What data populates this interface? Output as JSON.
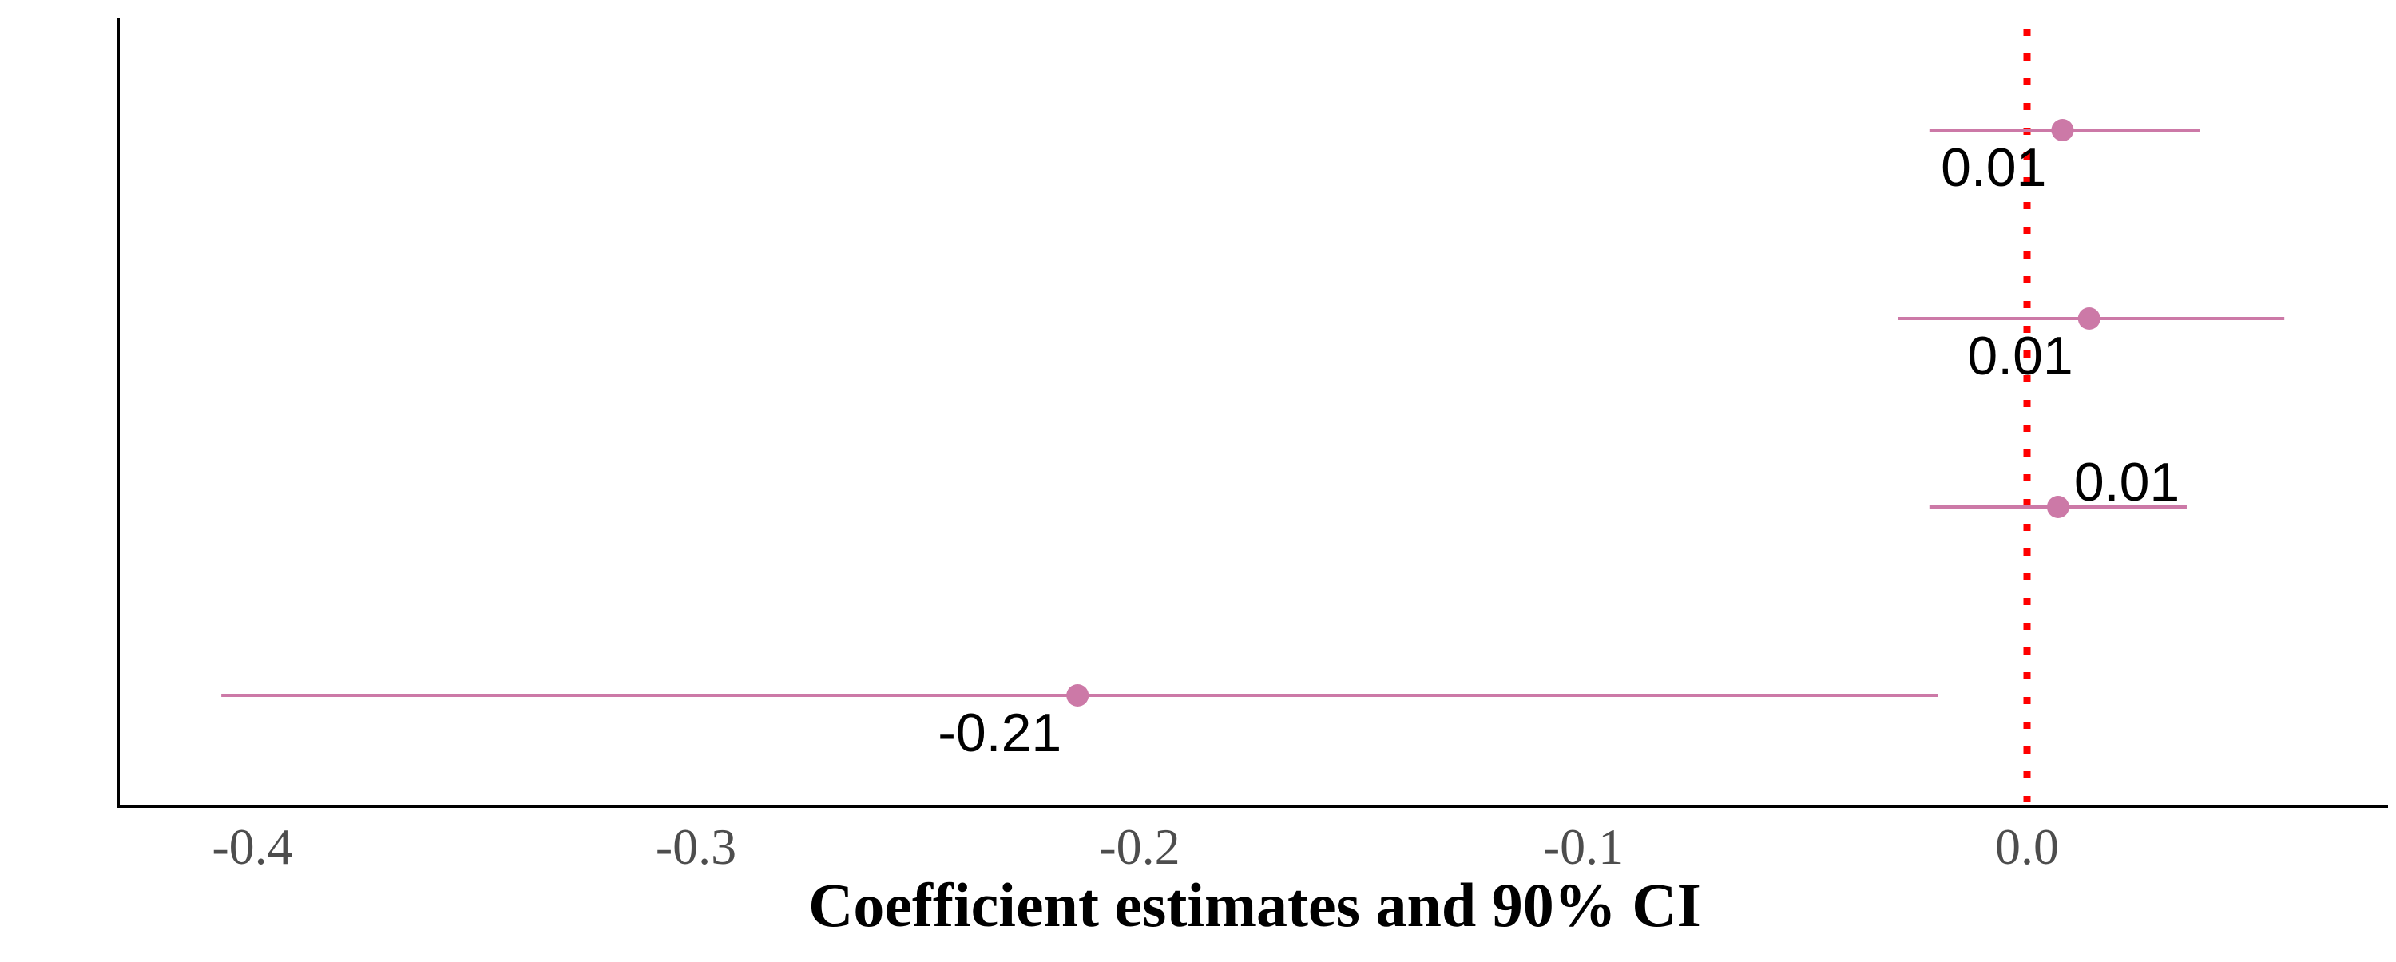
{
  "chart_data": {
    "type": "scatter",
    "subtype": "coefficient-plot",
    "title": "",
    "xlabel": "Coefficient estimates and 90% CI",
    "ylabel": "",
    "xlim": [
      -0.43,
      0.07
    ],
    "x_ticks": [
      -0.4,
      -0.3,
      -0.2,
      -0.1,
      0.0
    ],
    "x_tick_labels": [
      "-0.4",
      "-0.3",
      "-0.2",
      "-0.1",
      "0.0"
    ],
    "y_tick_labels_shown": false,
    "grid": false,
    "reference_line": {
      "x": 0.0,
      "style": "dotted",
      "color": "#ff0000"
    },
    "point_color": "#cc79a7",
    "points": [
      {
        "estimate": 0.008,
        "ci_low": -0.022,
        "ci_high": 0.039,
        "label": "0.01",
        "label_position": "below-left"
      },
      {
        "estimate": 0.014,
        "ci_low": -0.029,
        "ci_high": 0.058,
        "label": "0.01",
        "label_position": "below-left"
      },
      {
        "estimate": 0.007,
        "ci_low": -0.022,
        "ci_high": 0.036,
        "label": "0.01",
        "label_position": "above-right"
      },
      {
        "estimate": -0.214,
        "ci_low": -0.407,
        "ci_high": -0.02,
        "label": "-0.21",
        "label_position": "below-left"
      }
    ]
  }
}
